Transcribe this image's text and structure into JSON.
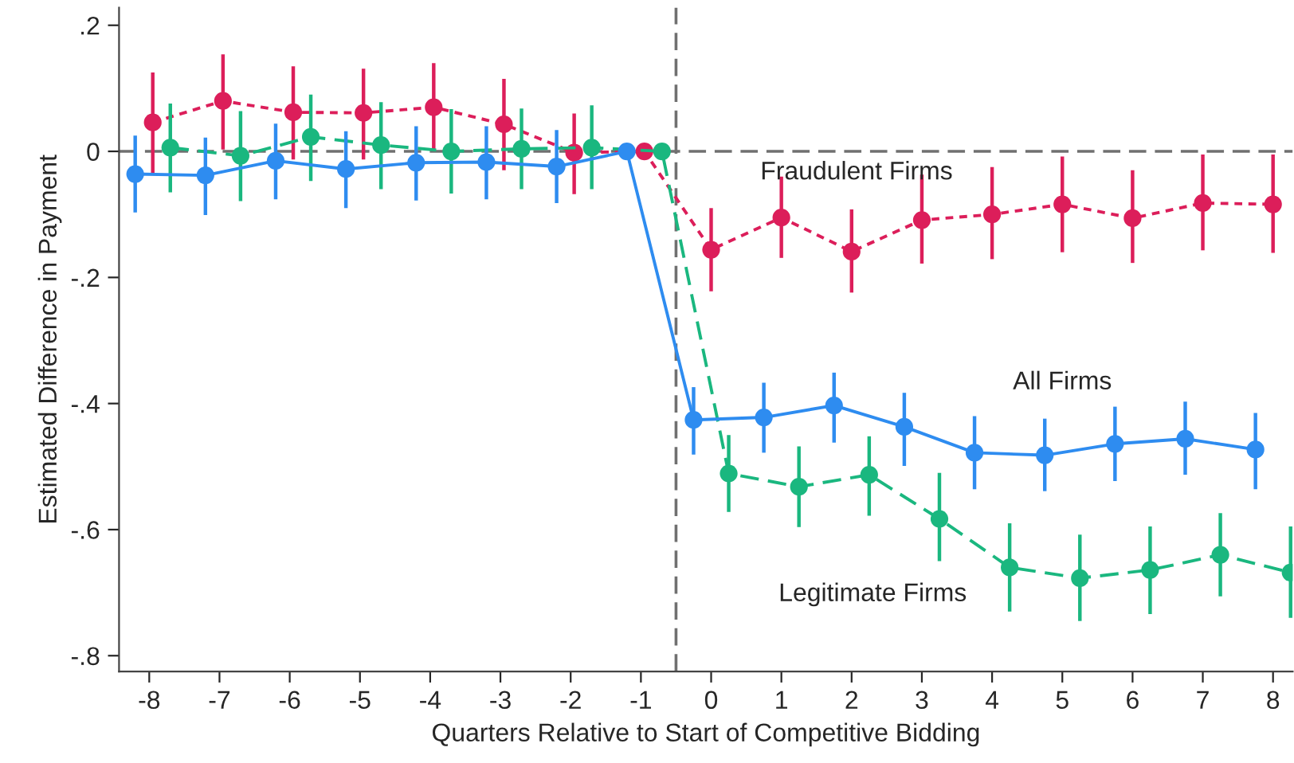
{
  "chart_data": {
    "type": "line",
    "xlabel": "Quarters Relative to Start of Competitive Bidding",
    "ylabel": "Estimated Difference in Payment",
    "xlim": [
      -8.43,
      8.28
    ],
    "ylim": [
      -0.825,
      0.228
    ],
    "xticks": [
      -8,
      -7,
      -6,
      -5,
      -4,
      -3,
      -2,
      -1,
      0,
      1,
      2,
      3,
      4,
      5,
      6,
      7,
      8
    ],
    "yticks": [
      {
        "value": 0.2,
        "label": ".2"
      },
      0,
      {
        "value": -0.2,
        "label": "-.2"
      },
      {
        "value": -0.4,
        "label": "-.4"
      },
      {
        "value": -0.6,
        "label": "-.6"
      },
      {
        "value": -0.8,
        "label": "-.8"
      }
    ],
    "grid": false,
    "legend": false,
    "marker": "circle",
    "ref_lines": [
      {
        "axis": "y",
        "value": 0,
        "color": "#707070",
        "line_style": "dashed"
      },
      {
        "axis": "x",
        "value": -0.5,
        "color": "#707070",
        "line_style": "dashed"
      }
    ],
    "series": [
      {
        "name": "Fraudulent Firms",
        "color": "#dc1e5a",
        "line_style": "dotted",
        "x": [
          -7.95,
          -6.95,
          -5.95,
          -4.95,
          -3.95,
          -2.95,
          -1.95,
          -0.95,
          0.0,
          1.0,
          2.0,
          3.0,
          4.0,
          5.0,
          6.0,
          7.0,
          8.0
        ],
        "values": [
          0.046,
          0.08,
          0.062,
          0.061,
          0.07,
          0.043,
          -0.002,
          0,
          -0.156,
          -0.105,
          -0.159,
          -0.109,
          -0.1,
          -0.084,
          -0.106,
          -0.082,
          -0.084
        ],
        "errors": [
          [
            -0.034,
            0.125
          ],
          [
            0.003,
            0.154
          ],
          [
            -0.013,
            0.135
          ],
          [
            -0.013,
            0.131
          ],
          [
            0.0,
            0.14
          ],
          [
            -0.03,
            0.115
          ],
          [
            -0.068,
            0.06
          ],
          null,
          [
            -0.222,
            -0.09
          ],
          [
            -0.169,
            -0.04
          ],
          [
            -0.224,
            -0.092
          ],
          [
            -0.178,
            -0.037
          ],
          [
            -0.171,
            -0.025
          ],
          [
            -0.16,
            -0.008
          ],
          [
            -0.177,
            -0.03
          ],
          [
            -0.157,
            -0.005
          ],
          [
            -0.161,
            -0.005
          ]
        ]
      },
      {
        "name": "Legitimate Firms",
        "color": "#1ab77f",
        "line_style": "dashed",
        "x": [
          -7.7,
          -6.7,
          -5.7,
          -4.7,
          -3.7,
          -2.7,
          -1.7,
          -0.7,
          0.25,
          1.25,
          2.25,
          3.25,
          4.25,
          5.25,
          6.25,
          7.25,
          8.25
        ],
        "values": [
          0.006,
          -0.007,
          0.023,
          0.01,
          0.0,
          0.004,
          0.006,
          0,
          -0.511,
          -0.532,
          -0.513,
          -0.583,
          -0.66,
          -0.677,
          -0.664,
          -0.64,
          -0.668
        ],
        "errors": [
          [
            -0.065,
            0.076
          ],
          [
            -0.079,
            0.064
          ],
          [
            -0.047,
            0.09
          ],
          [
            -0.06,
            0.078
          ],
          [
            -0.067,
            0.067
          ],
          [
            -0.06,
            0.068
          ],
          [
            -0.06,
            0.073
          ],
          null,
          [
            -0.572,
            -0.45
          ],
          [
            -0.596,
            -0.468
          ],
          [
            -0.578,
            -0.452
          ],
          [
            -0.65,
            -0.51
          ],
          [
            -0.73,
            -0.59
          ],
          [
            -0.745,
            -0.608
          ],
          [
            -0.734,
            -0.595
          ],
          [
            -0.706,
            -0.574
          ],
          [
            -0.74,
            -0.595
          ]
        ]
      },
      {
        "name": "All Firms",
        "color": "#2e8cf0",
        "line_style": "solid",
        "x": [
          -8.2,
          -7.2,
          -6.2,
          -5.2,
          -4.2,
          -3.2,
          -2.2,
          -1.2,
          -0.25,
          0.75,
          1.75,
          2.75,
          3.75,
          4.75,
          5.75,
          6.75,
          7.75
        ],
        "values": [
          -0.036,
          -0.038,
          -0.015,
          -0.028,
          -0.018,
          -0.017,
          -0.024,
          0,
          -0.426,
          -0.422,
          -0.403,
          -0.437,
          -0.478,
          -0.482,
          -0.464,
          -0.456,
          -0.473
        ],
        "errors": [
          [
            -0.097,
            0.025
          ],
          [
            -0.101,
            0.022
          ],
          [
            -0.076,
            0.044
          ],
          [
            -0.09,
            0.032
          ],
          [
            -0.078,
            0.04
          ],
          [
            -0.076,
            0.04
          ],
          [
            -0.082,
            0.034
          ],
          null,
          [
            -0.481,
            -0.374
          ],
          [
            -0.478,
            -0.367
          ],
          [
            -0.462,
            -0.351
          ],
          [
            -0.499,
            -0.383
          ],
          [
            -0.536,
            -0.42
          ],
          [
            -0.539,
            -0.424
          ],
          [
            -0.523,
            -0.405
          ],
          [
            -0.513,
            -0.397
          ],
          [
            -0.536,
            -0.415
          ]
        ]
      }
    ]
  }
}
